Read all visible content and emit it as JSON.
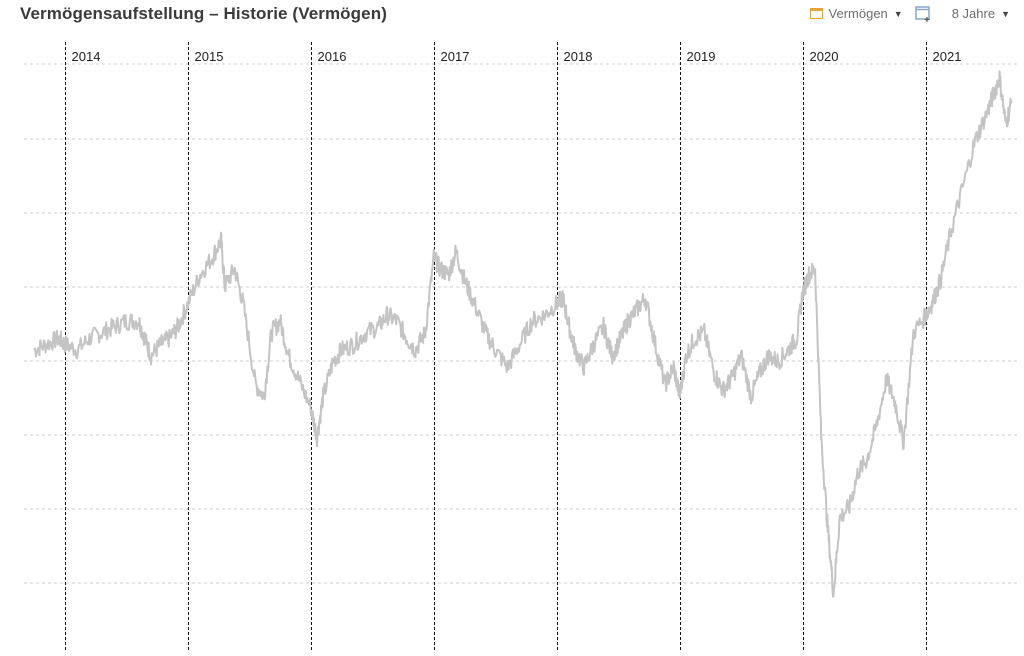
{
  "header": {
    "title": "Vermögensaufstellung – Historie (Vermögen)",
    "series_button_label": "Vermögen",
    "range_button_label": "8 Jahre"
  },
  "colors": {
    "line": "#c4c4c4",
    "series_swatch": "#e8a33d",
    "add_icon": "#8aa6c4",
    "grid": "#cfcfcf",
    "year_divider": "#111111"
  },
  "icons": {
    "series": "series-swatch-icon",
    "series_caret": "caret-down-icon",
    "add_chart": "add-chart-icon",
    "range_caret": "caret-down-icon"
  },
  "chart_data": {
    "type": "line",
    "title": "Vermögensaufstellung – Historie (Vermögen)",
    "xlabel": "",
    "ylabel": "",
    "x_range": [
      2013.7,
      2021.75
    ],
    "y_range": [
      0,
      100
    ],
    "y_ticks_labeled": false,
    "grid": "horizontal dashed",
    "legend": "none",
    "year_markers": [
      "2014",
      "2015",
      "2016",
      "2017",
      "2018",
      "2019",
      "2020",
      "2021"
    ],
    "year_marker_positions": [
      2014,
      2015,
      2016,
      2017,
      2018,
      2019,
      2020,
      2021
    ],
    "series": [
      {
        "x": [
          2013.75,
          2013.85,
          2013.95,
          2014.0,
          2014.1,
          2014.2,
          2014.3,
          2014.4,
          2014.5,
          2014.6,
          2014.65,
          2014.7,
          2014.78,
          2014.85,
          2014.92,
          2015.0,
          2015.1,
          2015.2,
          2015.27,
          2015.3,
          2015.38,
          2015.45,
          2015.55,
          2015.62,
          2015.68,
          2015.75,
          2015.82,
          2015.9,
          2016.0,
          2016.05,
          2016.1,
          2016.18,
          2016.25,
          2016.35,
          2016.45,
          2016.55,
          2016.62,
          2016.7,
          2016.78,
          2016.85,
          2016.93,
          2017.0,
          2017.05,
          2017.12,
          2017.18,
          2017.25,
          2017.33,
          2017.42,
          2017.5,
          2017.6,
          2017.7,
          2017.8,
          2017.9,
          2018.0,
          2018.05,
          2018.1,
          2018.15,
          2018.22,
          2018.3,
          2018.38,
          2018.45,
          2018.52,
          2018.58,
          2018.65,
          2018.72,
          2018.8,
          2018.88,
          2018.95,
          2019.0,
          2019.05,
          2019.12,
          2019.2,
          2019.28,
          2019.35,
          2019.42,
          2019.5,
          2019.58,
          2019.65,
          2019.72,
          2019.8,
          2019.88,
          2019.95,
          2020.0,
          2020.05,
          2020.1,
          2020.15,
          2020.2,
          2020.25,
          2020.3,
          2020.38,
          2020.45,
          2020.52,
          2020.6,
          2020.68,
          2020.75,
          2020.82,
          2020.9,
          2021.0,
          2021.05,
          2021.12,
          2021.2,
          2021.3,
          2021.4,
          2021.5,
          2021.55,
          2021.6,
          2021.65,
          2021.7
        ],
        "y": [
          50,
          51,
          52,
          51,
          50,
          52,
          53,
          54,
          55,
          55,
          52,
          49,
          51,
          52,
          54,
          58,
          63,
          66,
          69,
          61,
          64,
          58,
          44,
          42,
          53,
          55,
          49,
          45,
          40,
          35,
          42,
          48,
          50,
          51,
          53,
          54,
          56,
          55,
          52,
          50,
          53,
          66,
          64,
          63,
          67,
          62,
          58,
          53,
          50,
          47,
          51,
          55,
          56,
          58,
          59,
          54,
          50,
          47,
          51,
          54,
          49,
          52,
          55,
          57,
          59,
          51,
          44,
          47,
          42,
          49,
          52,
          53,
          46,
          43,
          45,
          49,
          42,
          46,
          49,
          48,
          50,
          52,
          60,
          63,
          64,
          35,
          20,
          8,
          21,
          23,
          29,
          31,
          37,
          45,
          41,
          34,
          53,
          56,
          58,
          62,
          70,
          78,
          86,
          91,
          94,
          97,
          89,
          93
        ]
      }
    ]
  }
}
